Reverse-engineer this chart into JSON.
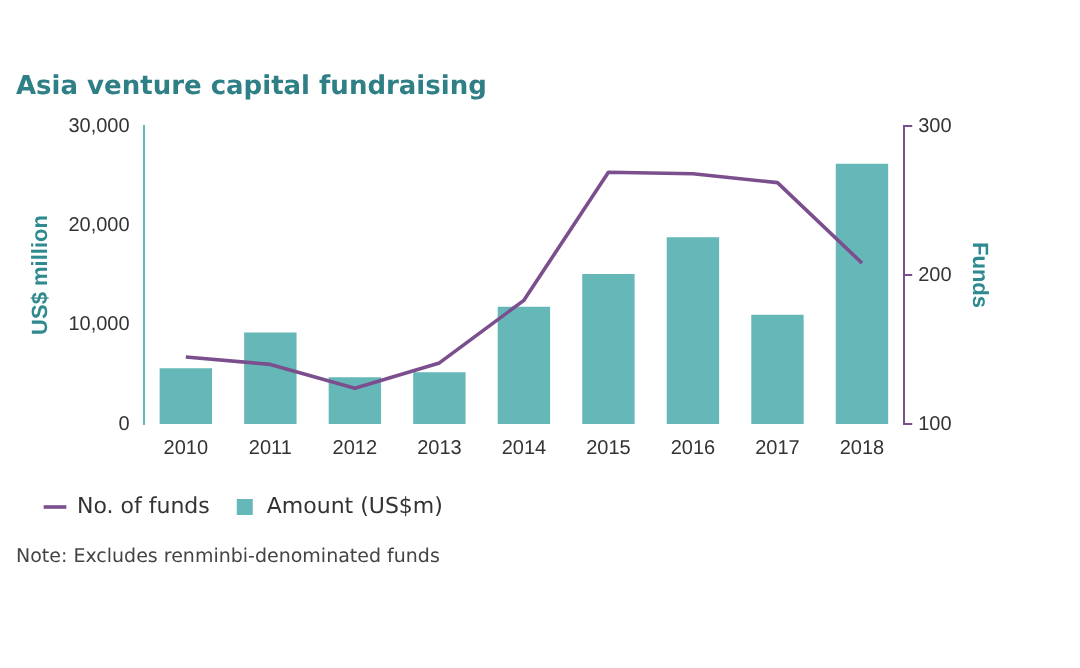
{
  "chart_data": {
    "type": "bar",
    "title": "Asia venture capital fundraising",
    "ylabel": "US$ million",
    "y2label": "Funds",
    "categories": [
      "2010",
      "2011",
      "2012",
      "2013",
      "2014",
      "2015",
      "2016",
      "2017",
      "2018"
    ],
    "series": [
      {
        "name": "No. of funds",
        "type": "line",
        "axis": "y2",
        "color": "#7b4f8e",
        "values": [
          145,
          140,
          124,
          141,
          183,
          269,
          268,
          262,
          208
        ]
      },
      {
        "name": "Amount (US$m)",
        "color": "#66b8b8",
        "values": [
          5600,
          9200,
          4700,
          5200,
          11800,
          15100,
          18800,
          11000,
          26200
        ]
      }
    ],
    "ylim": [
      0,
      30000
    ],
    "yticks": [
      0,
      {
        "value": 10000,
        "label": "10,000"
      },
      {
        "value": 20000,
        "label": "20,000"
      },
      {
        "value": 30000,
        "label": "30,000"
      }
    ],
    "y2lim": [
      100,
      300
    ],
    "y2ticks": [
      100,
      200,
      300
    ],
    "grid": false,
    "legend": "bottom",
    "marker": "none",
    "line_style": "solid",
    "annotations": [
      "Note: Excludes renminbi-denominated funds"
    ]
  }
}
